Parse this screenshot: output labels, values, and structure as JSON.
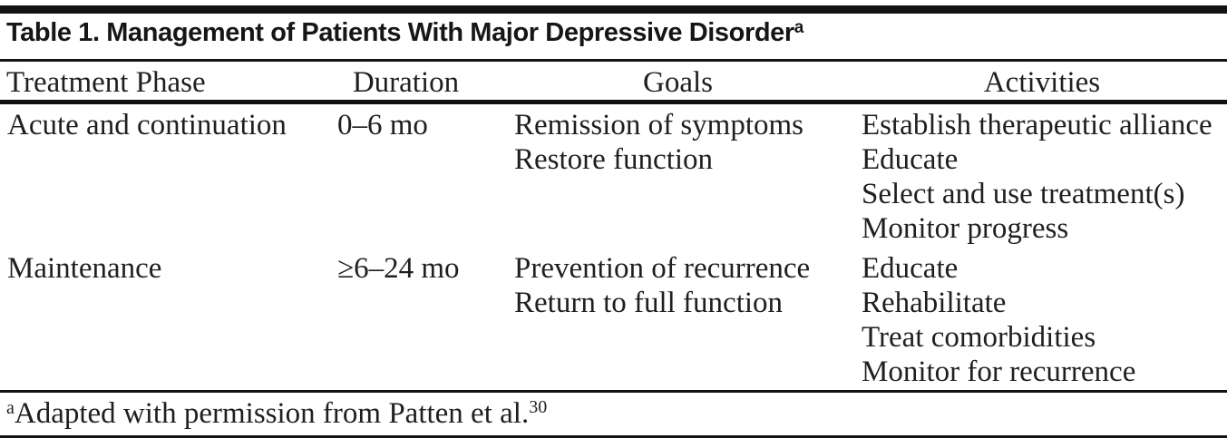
{
  "title": {
    "text": "Table 1. Management of Patients With Major Depressive Disorder",
    "footnote_marker": "a"
  },
  "table": {
    "headers": [
      "Treatment Phase",
      "Duration",
      "Goals",
      "Activities"
    ],
    "rows": [
      {
        "treatment_phase": "Acute and continuation",
        "duration": "0–6 mo",
        "goals": [
          "Remission of symptoms",
          "Restore function"
        ],
        "activities": [
          "Establish therapeutic alliance",
          "Educate",
          "Select and use treatment(s)",
          "Monitor progress"
        ]
      },
      {
        "treatment_phase": "Maintenance",
        "duration": "≥6–24 mo",
        "goals": [
          "Prevention of recurrence",
          "Return to full function"
        ],
        "activities": [
          "Educate",
          "Rehabilitate",
          "Treat comorbidities",
          "Monitor for recurrence"
        ]
      }
    ]
  },
  "footnote": {
    "marker": "a",
    "text": "Adapted with permission from Patten et al.",
    "reference": "30"
  },
  "colors": {
    "text": "#1f1f1f",
    "rule": "#121212",
    "background": "#ffffff"
  }
}
